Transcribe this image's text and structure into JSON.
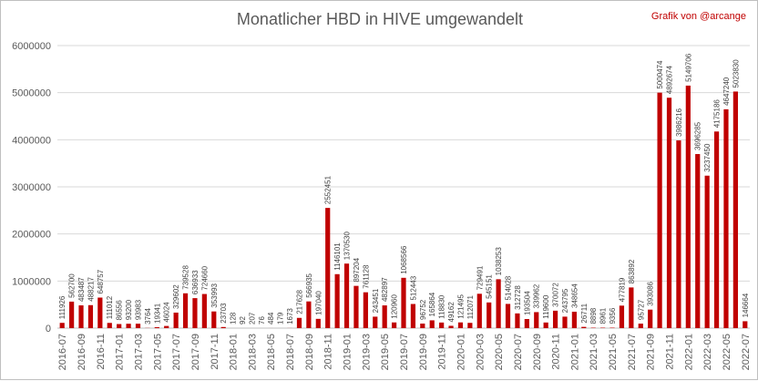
{
  "colors": {
    "bar": "#c00000",
    "grid": "#d9d9d9",
    "axis_text": "#595959",
    "credit": "#c00000"
  },
  "chart_data": {
    "type": "bar",
    "title": "Monatlicher HBD in HIVE umgewandelt",
    "credit": "Grafik von @arcange",
    "xlabel": "",
    "ylabel": "",
    "ylim": [
      0,
      6000000
    ],
    "yticks": [
      0,
      1000000,
      2000000,
      3000000,
      4000000,
      5000000,
      6000000
    ],
    "ytick_labels": [
      "0",
      "1000000",
      "2000000",
      "3000000",
      "4000000",
      "5000000",
      "6000000"
    ],
    "grid": true,
    "legend": "none",
    "categories": [
      "2016-07",
      "2016-08",
      "2016-09",
      "2016-10",
      "2016-11",
      "2016-12",
      "2017-01",
      "2017-02",
      "2017-03",
      "2017-04",
      "2017-05",
      "2017-06",
      "2017-07",
      "2017-08",
      "2017-09",
      "2017-10",
      "2017-11",
      "2017-12",
      "2018-01",
      "2018-02",
      "2018-03",
      "2018-04",
      "2018-05",
      "2018-06",
      "2018-07",
      "2018-08",
      "2018-09",
      "2018-10",
      "2018-11",
      "2018-12",
      "2019-01",
      "2019-02",
      "2019-03",
      "2019-04",
      "2019-05",
      "2019-06",
      "2019-07",
      "2019-08",
      "2019-09",
      "2019-10",
      "2019-11",
      "2019-12",
      "2020-01",
      "2020-02",
      "2020-03",
      "2020-04",
      "2020-05",
      "2020-06",
      "2020-07",
      "2020-08",
      "2020-09",
      "2020-10",
      "2020-11",
      "2020-12",
      "2021-01",
      "2021-02",
      "2021-03",
      "2021-04",
      "2021-05",
      "2021-06",
      "2021-07",
      "2021-08",
      "2021-09",
      "2021-10",
      "2021-11",
      "2021-12",
      "2022-01",
      "2022-02",
      "2022-03",
      "2022-04",
      "2022-05",
      "2022-06",
      "2022-07"
    ],
    "values": [
      111926,
      562700,
      483487,
      488217,
      648757,
      111012,
      86556,
      93200,
      93983,
      3764,
      19341,
      46024,
      329602,
      739528,
      636933,
      724660,
      353993,
      23703,
      128,
      92,
      207,
      76,
      484,
      179,
      1673,
      217628,
      566935,
      197040,
      2552451,
      1146101,
      1370530,
      897204,
      761128,
      243451,
      482897,
      120960,
      1068566,
      512443,
      96752,
      165864,
      118830,
      49162,
      121495,
      112071,
      729491,
      545151,
      1038253,
      514028,
      312728,
      193504,
      339962,
      119600,
      370072,
      243795,
      348654,
      26711,
      8898,
      8961,
      9356,
      477819,
      863892,
      95727,
      393086,
      5000474,
      4892674,
      3986216,
      5149706,
      3696285,
      3237450,
      4175186,
      4647240,
      5023830,
      146664
    ],
    "value_labels": [
      "111926",
      "562700",
      "483487",
      "488217",
      "648757",
      "111012",
      "86556",
      "93200",
      "93983",
      "3764",
      "19341",
      "46024",
      "329602",
      "739528",
      "636933",
      "724660",
      "353993",
      "23703",
      "128",
      "92",
      "207",
      "76",
      "484",
      "179",
      "1673",
      "217628",
      "566935",
      "197040",
      "2552451",
      "1146101",
      "1370530",
      "897204",
      "761128",
      "243451",
      "482897",
      "120960",
      "1068566",
      "512443",
      "96752",
      "165864",
      "118830",
      "49162",
      "121495",
      "112071",
      "729491",
      "545151",
      "1038253",
      "514028",
      "312728",
      "193504",
      "339962",
      "119600",
      "370072",
      "243795",
      "348654",
      "26711",
      "8898",
      "8961",
      "9356",
      "477819",
      "863892",
      "95727",
      "393086",
      "5000474",
      "4892674",
      "3986216",
      "5149706",
      "3696285",
      "3237450",
      "4175186",
      "4647240",
      "5023830",
      "146664"
    ],
    "xtick_labels": [
      "2016-07",
      "2016-09",
      "2016-11",
      "2017-01",
      "2017-03",
      "2017-05",
      "2017-07",
      "2017-09",
      "2017-11",
      "2018-01",
      "2018-03",
      "2018-05",
      "2018-07",
      "2018-09",
      "2018-11",
      "2019-01",
      "2019-03",
      "2019-05",
      "2019-07",
      "2019-09",
      "2019-11",
      "2020-01",
      "2020-03",
      "2020-05",
      "2020-07",
      "2020-09",
      "2020-11",
      "2021-01",
      "2021-03",
      "2021-05",
      "2021-07",
      "2021-09",
      "2021-11",
      "2022-01",
      "2022-03",
      "2022-05",
      "2022-07"
    ]
  }
}
